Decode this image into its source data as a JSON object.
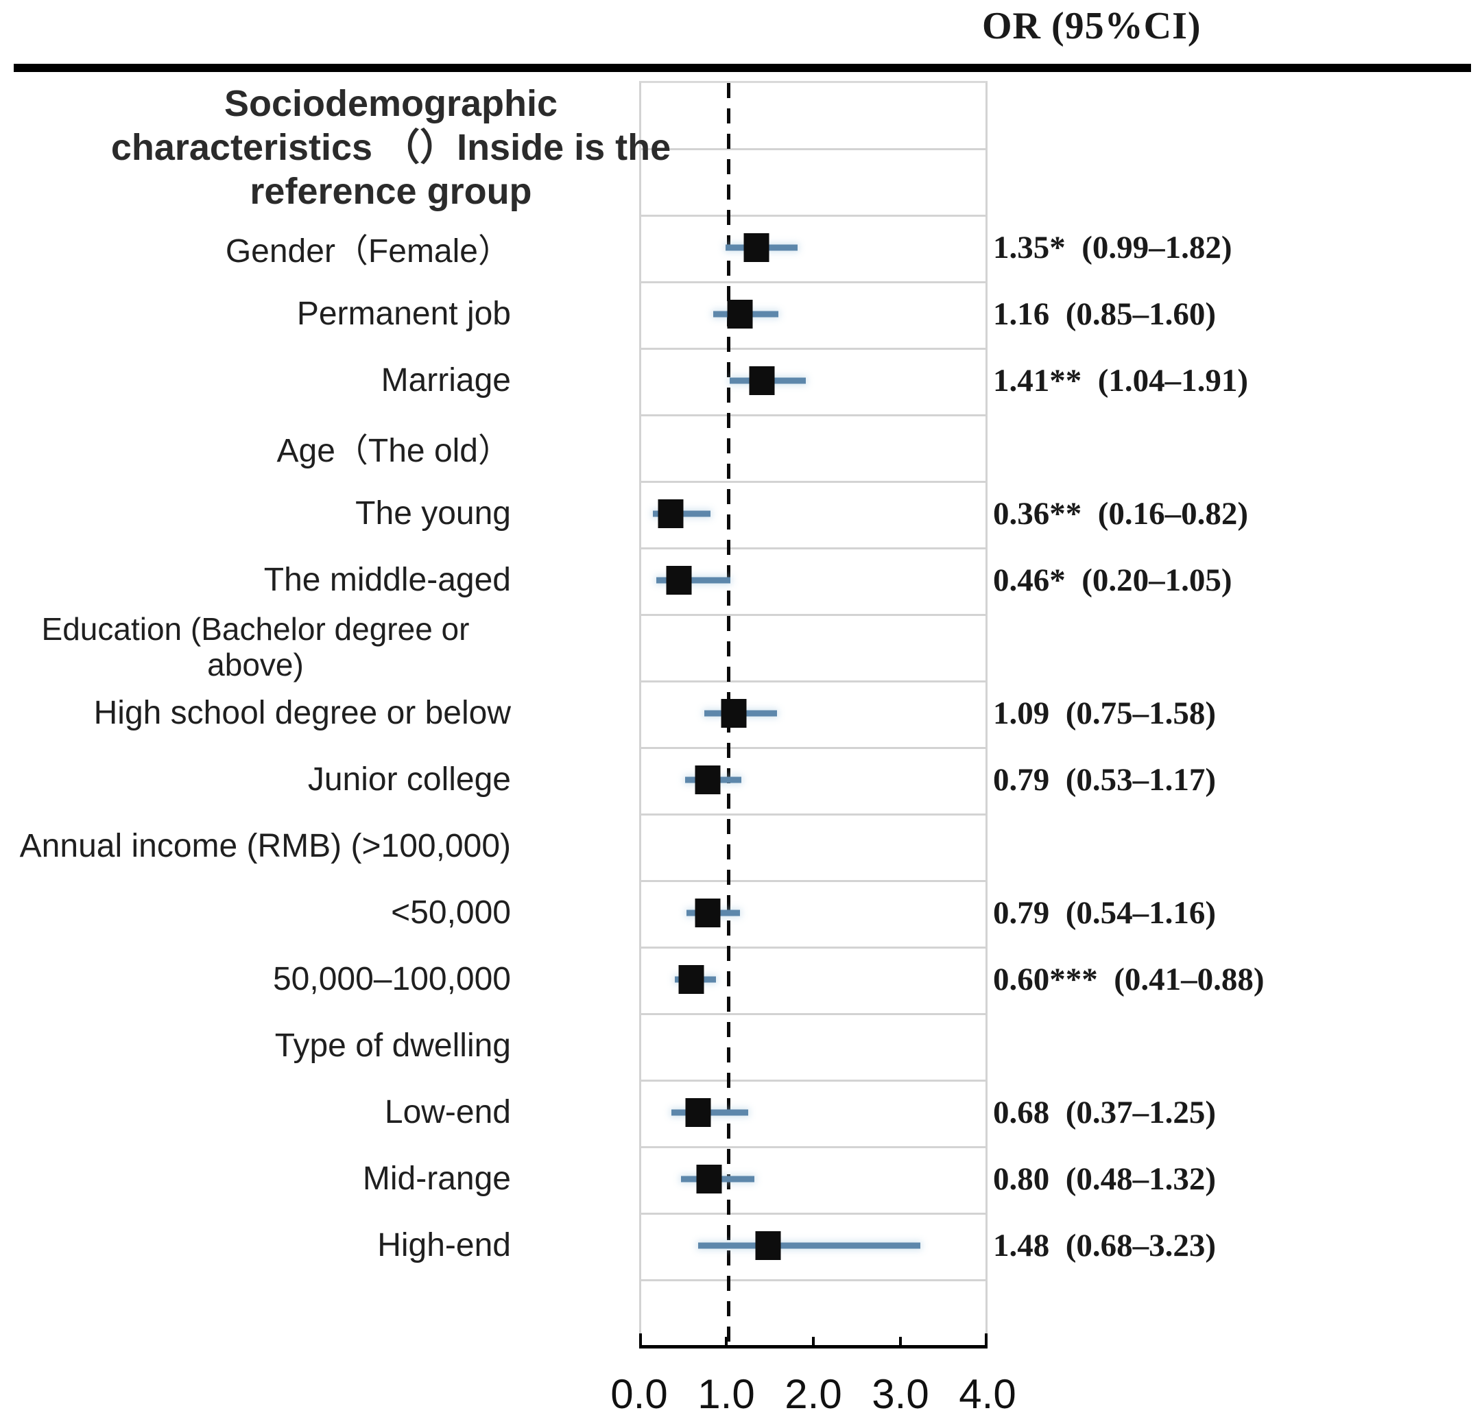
{
  "figure": {
    "or_header": "OR (95%CI)"
  },
  "chart_data": {
    "type": "forest",
    "title": "Sociodemographic characteristics （）Inside is the reference group",
    "title_lines": [
      "Sociodemographic",
      "characteristics （）Inside is the",
      "reference group"
    ],
    "x_axis": {
      "min": 0.0,
      "max": 4.0,
      "tick_labels": [
        "0.0",
        "1.0",
        "2.0",
        "3.0",
        "4.0"
      ],
      "reference_line": 1.0
    },
    "legend": "none",
    "grid": "horizontal light gray row separators",
    "style": {
      "ci_color": "#5d87ab",
      "marker_color": "#0d0d0d",
      "gridline_color": "#d3d3d3",
      "reference_line_color": "#0a0a0a"
    },
    "rows": [
      {
        "label": "Gender（Female）",
        "or": 1.35,
        "ci_low": 0.99,
        "ci_high": 1.82,
        "or_text": "1.35*  (0.99–1.82)"
      },
      {
        "label": "Permanent job",
        "or": 1.16,
        "ci_low": 0.85,
        "ci_high": 1.6,
        "or_text": "1.16  (0.85–1.60)"
      },
      {
        "label": "Marriage",
        "or": 1.41,
        "ci_low": 1.04,
        "ci_high": 1.91,
        "or_text": "1.41**  (1.04–1.91)"
      },
      {
        "label": "Age（The old）",
        "or": null,
        "ci_low": null,
        "ci_high": null,
        "or_text": ""
      },
      {
        "label": "The young",
        "or": 0.36,
        "ci_low": 0.16,
        "ci_high": 0.82,
        "or_text": "0.36**  (0.16–0.82)"
      },
      {
        "label": "The middle-aged",
        "or": 0.46,
        "ci_low": 0.2,
        "ci_high": 1.05,
        "or_text": "0.46*  (0.20–1.05)"
      },
      {
        "label": "Education (Bachelor degree or above)",
        "or": null,
        "ci_low": null,
        "ci_high": null,
        "or_text": ""
      },
      {
        "label": "High school degree or below",
        "or": 1.09,
        "ci_low": 0.75,
        "ci_high": 1.58,
        "or_text": "1.09  (0.75–1.58)"
      },
      {
        "label": "Junior college",
        "or": 0.79,
        "ci_low": 0.53,
        "ci_high": 1.17,
        "or_text": "0.79  (0.53–1.17)"
      },
      {
        "label": "Annual income (RMB) (>100,000)",
        "or": null,
        "ci_low": null,
        "ci_high": null,
        "or_text": ""
      },
      {
        "label": "<50,000",
        "or": 0.79,
        "ci_low": 0.54,
        "ci_high": 1.16,
        "or_text": "0.79  (0.54–1.16)"
      },
      {
        "label": "50,000–100,000",
        "or": 0.6,
        "ci_low": 0.41,
        "ci_high": 0.88,
        "or_text": "0.60***  (0.41–0.88)"
      },
      {
        "label": "Type of dwelling",
        "or": null,
        "ci_low": null,
        "ci_high": null,
        "or_text": ""
      },
      {
        "label": "Low-end",
        "or": 0.68,
        "ci_low": 0.37,
        "ci_high": 1.25,
        "or_text": "0.68  (0.37–1.25)"
      },
      {
        "label": "Mid-range",
        "or": 0.8,
        "ci_low": 0.48,
        "ci_high": 1.32,
        "or_text": "0.80  (0.48–1.32)"
      },
      {
        "label": "High-end",
        "or": 1.48,
        "ci_low": 0.68,
        "ci_high": 3.23,
        "or_text": "1.48  (0.68–3.23)"
      }
    ]
  }
}
